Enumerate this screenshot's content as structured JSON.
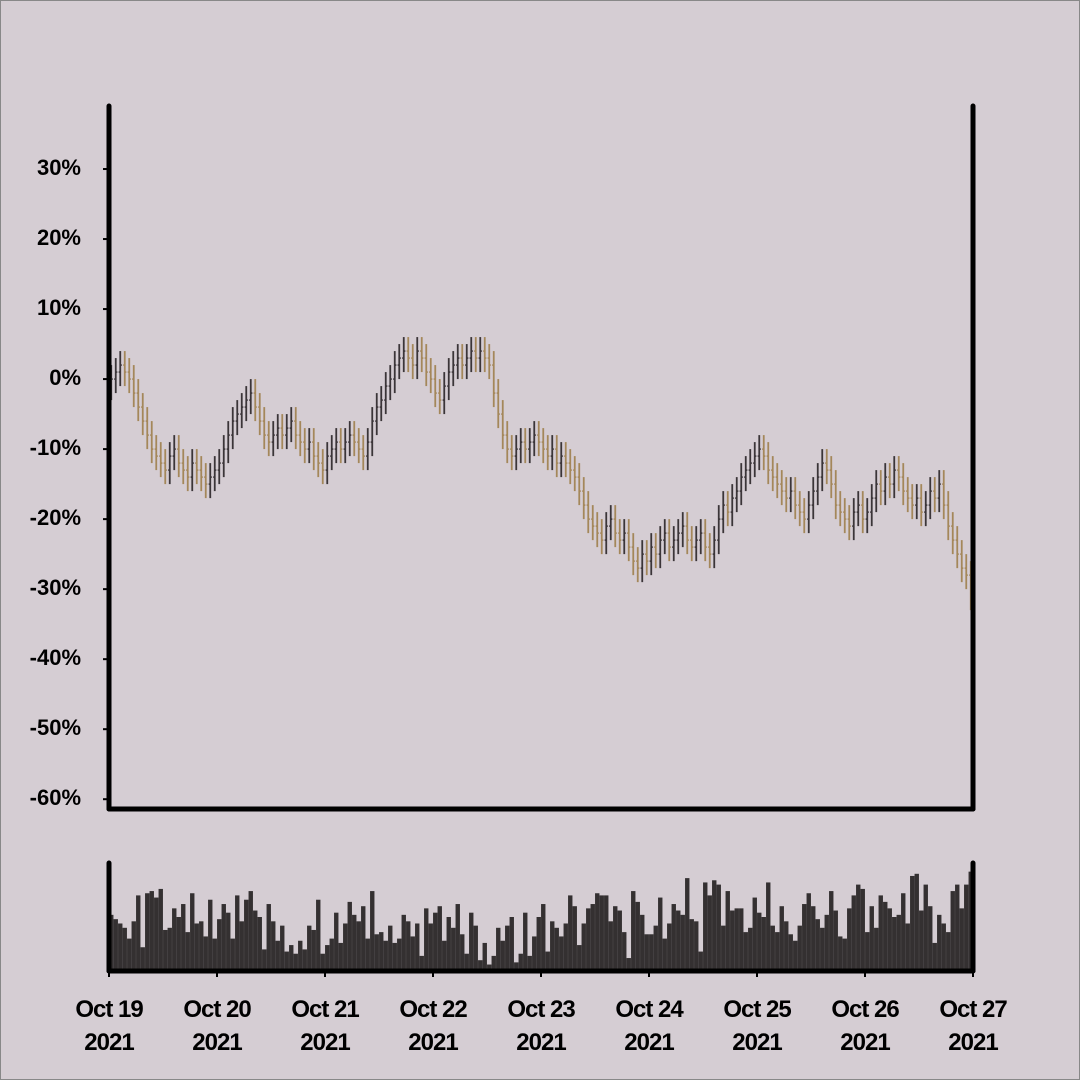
{
  "chart_data": {
    "type": "ohlc",
    "xlim": [
      0,
      192
    ],
    "xticks": [
      {
        "value": 0,
        "label": "Oct 19\n2021"
      },
      {
        "value": 24,
        "label": "Oct 20\n2021"
      },
      {
        "value": 48,
        "label": "Oct 21\n2021"
      },
      {
        "value": 72,
        "label": "Oct 22\n2021"
      },
      {
        "value": 96,
        "label": "Oct 23\n2021"
      },
      {
        "value": 120,
        "label": "Oct 24\n2021"
      },
      {
        "value": 144,
        "label": "Oct 25\n2021"
      },
      {
        "value": 168,
        "label": "Oct 26\n2021"
      },
      {
        "value": 192,
        "label": "Oct 27\n2021"
      }
    ],
    "ylim": [
      -61.4,
      39
    ],
    "yticks": [
      {
        "value": -60,
        "label": "-60%"
      },
      {
        "value": -50,
        "label": "-50%"
      },
      {
        "value": -40,
        "label": "-40%"
      },
      {
        "value": -30,
        "label": "-30%"
      },
      {
        "value": -20,
        "label": "-20%"
      },
      {
        "value": -10,
        "label": "-10%"
      },
      {
        "value": 0,
        "label": "0%"
      },
      {
        "value": 10,
        "label": "10%"
      },
      {
        "value": 20,
        "label": "20%"
      },
      {
        "value": 30,
        "label": "30%"
      }
    ],
    "up_color": "#3b3538",
    "down_color": "#a4875a",
    "volume_color": "#343031",
    "volume_ylim": [
      0,
      100
    ],
    "open": [
      -1,
      0,
      1,
      2,
      1,
      0,
      -2,
      -4,
      -6,
      -8,
      -10,
      -11,
      -12,
      -13,
      -11,
      -10,
      -12,
      -13,
      -14,
      -12,
      -13,
      -14,
      -15,
      -14,
      -13,
      -12,
      -10,
      -8,
      -6,
      -5,
      -4,
      -3,
      -2,
      -4,
      -6,
      -8,
      -9,
      -8,
      -7,
      -8,
      -7,
      -6,
      -8,
      -9,
      -10,
      -9,
      -11,
      -12,
      -13,
      -11,
      -10,
      -9,
      -10,
      -9,
      -8,
      -9,
      -10,
      -11,
      -9,
      -6,
      -4,
      -3,
      -1,
      0,
      2,
      3,
      4,
      3,
      2,
      4,
      3,
      1,
      0,
      -2,
      -3,
      -1,
      1,
      2,
      3,
      2,
      3,
      4,
      3,
      4,
      3,
      2,
      -2,
      -5,
      -8,
      -10,
      -11,
      -10,
      -9,
      -10,
      -9,
      -8,
      -9,
      -10,
      -11,
      -10,
      -12,
      -11,
      -12,
      -13,
      -14,
      -16,
      -18,
      -20,
      -21,
      -22,
      -23,
      -21,
      -20,
      -22,
      -23,
      -22,
      -24,
      -26,
      -27,
      -25,
      -26,
      -24,
      -25,
      -23,
      -22,
      -24,
      -23,
      -22,
      -21,
      -23,
      -24,
      -23,
      -22,
      -24,
      -25,
      -23,
      -20,
      -18,
      -19,
      -17,
      -16,
      -14,
      -13,
      -12,
      -11,
      -10,
      -11,
      -13,
      -14,
      -15,
      -16,
      -17,
      -16,
      -18,
      -19,
      -20,
      -18,
      -16,
      -14,
      -12,
      -13,
      -15,
      -18,
      -19,
      -20,
      -21,
      -19,
      -18,
      -20,
      -19,
      -17,
      -15,
      -16,
      -14,
      -15,
      -13,
      -14,
      -16,
      -17,
      -18,
      -17,
      -19,
      -18,
      -16,
      -17,
      -15,
      -18,
      -21,
      -23,
      -25,
      -27,
      -28
    ],
    "high": [
      2,
      3,
      4,
      4,
      3,
      2,
      0,
      -2,
      -4,
      -6,
      -8,
      -9,
      -10,
      -9,
      -8,
      -8,
      -10,
      -11,
      -10,
      -10,
      -11,
      -12,
      -12,
      -11,
      -10,
      -8,
      -6,
      -4,
      -3,
      -2,
      -1,
      0,
      0,
      -2,
      -4,
      -6,
      -6,
      -5,
      -5,
      -5,
      -4,
      -4,
      -6,
      -7,
      -7,
      -7,
      -9,
      -10,
      -9,
      -8,
      -7,
      -7,
      -7,
      -6,
      -6,
      -7,
      -8,
      -7,
      -4,
      -2,
      -1,
      1,
      2,
      4,
      5,
      6,
      6,
      5,
      6,
      6,
      5,
      3,
      2,
      0,
      1,
      3,
      4,
      5,
      5,
      5,
      6,
      6,
      6,
      6,
      5,
      4,
      0,
      -3,
      -6,
      -8,
      -8,
      -7,
      -7,
      -7,
      -6,
      -6,
      -7,
      -8,
      -8,
      -8,
      -9,
      -9,
      -10,
      -11,
      -12,
      -14,
      -16,
      -18,
      -19,
      -20,
      -19,
      -18,
      -18,
      -20,
      -20,
      -20,
      -22,
      -24,
      -23,
      -23,
      -22,
      -22,
      -21,
      -20,
      -20,
      -21,
      -20,
      -19,
      -19,
      -21,
      -21,
      -20,
      -20,
      -22,
      -21,
      -18,
      -16,
      -16,
      -15,
      -14,
      -12,
      -11,
      -10,
      -9,
      -8,
      -8,
      -9,
      -11,
      -12,
      -13,
      -14,
      -14,
      -14,
      -16,
      -17,
      -16,
      -14,
      -12,
      -10,
      -10,
      -11,
      -13,
      -16,
      -17,
      -18,
      -17,
      -16,
      -16,
      -17,
      -15,
      -13,
      -13,
      -12,
      -12,
      -11,
      -11,
      -12,
      -14,
      -15,
      -15,
      -15,
      -16,
      -14,
      -14,
      -13,
      -13,
      -16,
      -19,
      -21,
      -23,
      -25,
      -26
    ],
    "low": [
      -3,
      -2,
      -1,
      -1,
      -2,
      -4,
      -6,
      -8,
      -10,
      -12,
      -13,
      -14,
      -15,
      -15,
      -13,
      -14,
      -15,
      -16,
      -16,
      -15,
      -16,
      -17,
      -17,
      -16,
      -15,
      -14,
      -12,
      -10,
      -8,
      -7,
      -6,
      -5,
      -6,
      -8,
      -10,
      -11,
      -11,
      -10,
      -10,
      -10,
      -9,
      -10,
      -11,
      -12,
      -12,
      -13,
      -14,
      -15,
      -15,
      -13,
      -12,
      -12,
      -12,
      -11,
      -11,
      -12,
      -13,
      -13,
      -11,
      -8,
      -6,
      -5,
      -3,
      -2,
      0,
      1,
      1,
      0,
      0,
      1,
      -1,
      -2,
      -4,
      -5,
      -5,
      -3,
      -1,
      0,
      0,
      0,
      1,
      1,
      1,
      1,
      0,
      -4,
      -7,
      -10,
      -12,
      -13,
      -13,
      -12,
      -12,
      -12,
      -11,
      -11,
      -12,
      -13,
      -13,
      -14,
      -14,
      -14,
      -15,
      -16,
      -18,
      -20,
      -22,
      -23,
      -24,
      -25,
      -25,
      -23,
      -24,
      -25,
      -25,
      -26,
      -28,
      -29,
      -29,
      -28,
      -28,
      -27,
      -27,
      -25,
      -26,
      -26,
      -25,
      -24,
      -25,
      -26,
      -26,
      -25,
      -26,
      -27,
      -27,
      -25,
      -22,
      -21,
      -21,
      -19,
      -18,
      -16,
      -15,
      -14,
      -13,
      -13,
      -15,
      -16,
      -17,
      -18,
      -19,
      -19,
      -20,
      -21,
      -22,
      -22,
      -20,
      -18,
      -16,
      -15,
      -17,
      -20,
      -21,
      -22,
      -23,
      -23,
      -21,
      -22,
      -22,
      -21,
      -19,
      -18,
      -18,
      -17,
      -17,
      -16,
      -18,
      -19,
      -20,
      -20,
      -21,
      -21,
      -20,
      -19,
      -19,
      -20,
      -23,
      -25,
      -27,
      -29,
      -30,
      -33
    ],
    "close": [
      0,
      1,
      2,
      1,
      0,
      -2,
      -4,
      -6,
      -8,
      -10,
      -11,
      -12,
      -13,
      -11,
      -10,
      -12,
      -13,
      -14,
      -12,
      -13,
      -14,
      -15,
      -14,
      -13,
      -12,
      -10,
      -8,
      -6,
      -5,
      -4,
      -3,
      -2,
      -4,
      -6,
      -8,
      -9,
      -8,
      -7,
      -8,
      -7,
      -6,
      -8,
      -9,
      -10,
      -9,
      -11,
      -12,
      -13,
      -11,
      -10,
      -9,
      -10,
      -9,
      -8,
      -9,
      -10,
      -11,
      -9,
      -6,
      -4,
      -3,
      -1,
      0,
      2,
      3,
      4,
      3,
      2,
      4,
      3,
      1,
      0,
      -2,
      -3,
      -1,
      1,
      2,
      3,
      2,
      3,
      4,
      3,
      4,
      3,
      2,
      -2,
      -5,
      -8,
      -10,
      -11,
      -10,
      -9,
      -10,
      -9,
      -8,
      -9,
      -10,
      -11,
      -10,
      -12,
      -11,
      -12,
      -13,
      -14,
      -16,
      -18,
      -20,
      -21,
      -22,
      -23,
      -21,
      -20,
      -22,
      -23,
      -22,
      -24,
      -26,
      -27,
      -25,
      -26,
      -24,
      -25,
      -23,
      -22,
      -24,
      -23,
      -22,
      -21,
      -23,
      -24,
      -23,
      -22,
      -24,
      -25,
      -23,
      -20,
      -18,
      -19,
      -17,
      -16,
      -14,
      -13,
      -12,
      -11,
      -10,
      -11,
      -13,
      -14,
      -15,
      -16,
      -17,
      -16,
      -18,
      -19,
      -20,
      -18,
      -16,
      -14,
      -12,
      -13,
      -15,
      -18,
      -19,
      -20,
      -21,
      -19,
      -18,
      -20,
      -19,
      -17,
      -15,
      -16,
      -14,
      -15,
      -13,
      -14,
      -16,
      -17,
      -18,
      -17,
      -19,
      -18,
      -16,
      -17,
      -15,
      -18,
      -21,
      -23,
      -25,
      -27,
      -28,
      -31
    ],
    "volume": [
      52,
      48,
      44,
      40,
      30,
      46,
      70,
      22,
      72,
      74,
      68,
      76,
      38,
      40,
      58,
      50,
      62,
      36,
      72,
      44,
      46,
      32,
      66,
      30,
      48,
      62,
      54,
      30,
      70,
      46,
      66,
      74,
      56,
      50,
      20,
      62,
      46,
      28,
      42,
      18,
      24,
      16,
      28,
      20,
      42,
      38,
      66,
      16,
      24,
      30,
      54,
      26,
      44,
      64,
      52,
      46,
      60,
      30,
      74,
      34,
      36,
      28,
      42,
      26,
      30,
      52,
      46,
      32,
      44,
      14,
      58,
      44,
      54,
      60,
      28,
      50,
      40,
      62,
      34,
      16,
      54,
      42,
      10,
      26,
      6,
      14,
      40,
      28,
      42,
      50,
      8,
      16,
      54,
      14,
      32,
      50,
      62,
      18,
      46,
      40,
      32,
      44,
      70,
      60,
      24,
      44,
      58,
      62,
      72,
      70,
      70,
      46,
      60,
      56,
      36,
      12,
      74,
      64,
      52,
      34,
      34,
      42,
      68,
      30,
      44,
      62,
      56,
      52,
      86,
      48,
      46,
      18,
      82,
      70,
      84,
      80,
      42,
      74,
      56,
      58,
      58,
      36,
      40,
      68,
      54,
      50,
      82,
      42,
      36,
      60,
      46,
      34,
      28,
      42,
      62,
      72,
      60,
      48,
      40,
      52,
      74,
      56,
      32,
      30,
      58,
      70,
      80,
      76,
      36,
      60,
      40,
      70,
      64,
      58,
      50,
      52,
      72,
      44,
      88,
      90,
      56,
      80,
      60,
      26,
      52,
      44,
      36,
      74,
      80,
      58,
      80,
      92
    ]
  }
}
